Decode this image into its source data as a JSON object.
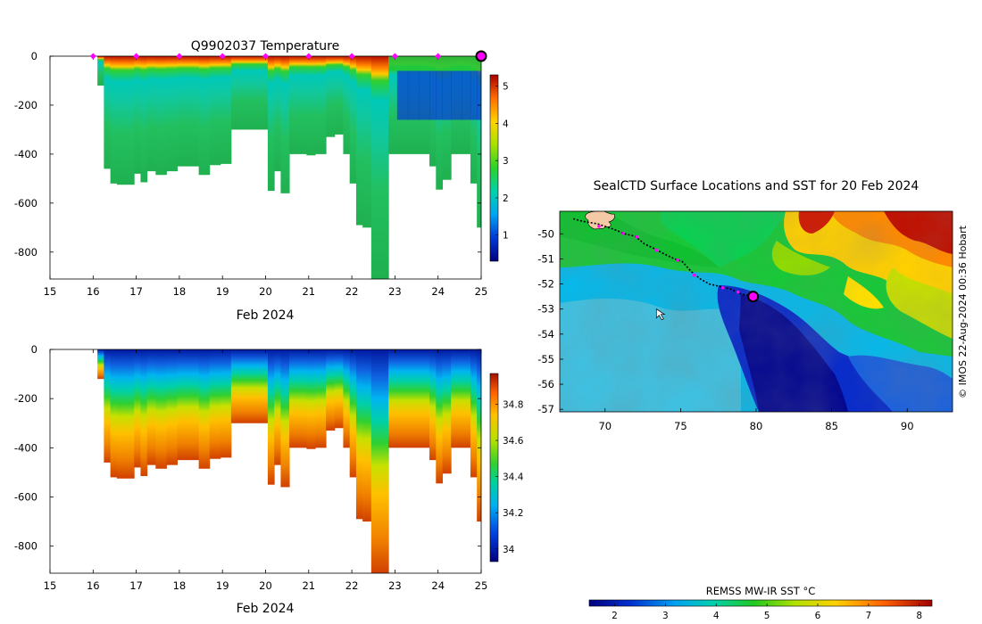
{
  "figure_title": "SealCTD Surface Locations and SST",
  "chart_data": [
    {
      "type": "heatmap",
      "title": "Q9902037  Temperature",
      "xlabel": "Feb 2024",
      "xticks": [
        "15",
        "16",
        "17",
        "18",
        "19",
        "20",
        "21",
        "22",
        "23",
        "24",
        "25"
      ],
      "xlim": [
        15,
        25
      ],
      "ylim": [
        -910,
        0
      ],
      "yticks": [
        "0",
        "-200",
        "-400",
        "-600",
        "-800"
      ],
      "ytick_values": [
        0,
        -200,
        -400,
        -600,
        -800
      ],
      "colorbar": {
        "ticks": [
          "1",
          "2",
          "3",
          "4",
          "5"
        ],
        "values": [
          1,
          2,
          3,
          4,
          5
        ],
        "range": [
          0.3,
          5.3
        ]
      },
      "surface_markers_day": [
        16,
        17,
        18,
        19,
        20,
        21,
        22,
        23,
        24
      ],
      "latest_marker_day": 25,
      "profiles": [
        {
          "day": 16.1,
          "depth": 120
        },
        {
          "day": 16.25,
          "depth": 460
        },
        {
          "day": 16.4,
          "depth": 520
        },
        {
          "day": 16.55,
          "depth": 525
        },
        {
          "day": 16.75,
          "depth": 525
        },
        {
          "day": 16.95,
          "depth": 480
        },
        {
          "day": 17.1,
          "depth": 515
        },
        {
          "day": 17.25,
          "depth": 470
        },
        {
          "day": 17.45,
          "depth": 485
        },
        {
          "day": 17.7,
          "depth": 470
        },
        {
          "day": 17.95,
          "depth": 450
        },
        {
          "day": 18.2,
          "depth": 450
        },
        {
          "day": 18.45,
          "depth": 485
        },
        {
          "day": 18.7,
          "depth": 445
        },
        {
          "day": 18.95,
          "depth": 440
        },
        {
          "day": 19.2,
          "depth": 300
        },
        {
          "day": 19.5,
          "depth": 300
        },
        {
          "day": 19.8,
          "depth": 300
        },
        {
          "day": 20.05,
          "depth": 550
        },
        {
          "day": 20.2,
          "depth": 470
        },
        {
          "day": 20.35,
          "depth": 560
        },
        {
          "day": 20.55,
          "depth": 400
        },
        {
          "day": 20.8,
          "depth": 400
        },
        {
          "day": 20.95,
          "depth": 405
        },
        {
          "day": 21.15,
          "depth": 400
        },
        {
          "day": 21.4,
          "depth": 330
        },
        {
          "day": 21.6,
          "depth": 320
        },
        {
          "day": 21.8,
          "depth": 400
        },
        {
          "day": 21.95,
          "depth": 520
        },
        {
          "day": 22.1,
          "depth": 690
        },
        {
          "day": 22.25,
          "depth": 700
        },
        {
          "day": 22.45,
          "depth": 910
        },
        {
          "day": 22.65,
          "depth": 910
        },
        {
          "day": 22.85,
          "depth": 400
        },
        {
          "day": 23.05,
          "depth": 400
        },
        {
          "day": 23.3,
          "depth": 400
        },
        {
          "day": 23.55,
          "depth": 400
        },
        {
          "day": 23.8,
          "depth": 450
        },
        {
          "day": 23.95,
          "depth": 545
        },
        {
          "day": 24.1,
          "depth": 505
        },
        {
          "day": 24.3,
          "depth": 400
        },
        {
          "day": 24.55,
          "depth": 400
        },
        {
          "day": 24.75,
          "depth": 520
        },
        {
          "day": 24.9,
          "depth": 700
        }
      ]
    },
    {
      "type": "heatmap",
      "title": "",
      "xlabel": "Feb 2024",
      "xticks": [
        "15",
        "16",
        "17",
        "18",
        "19",
        "20",
        "21",
        "22",
        "23",
        "24",
        "25"
      ],
      "xlim": [
        15,
        25
      ],
      "ylim": [
        -910,
        0
      ],
      "yticks": [
        "0",
        "-200",
        "-400",
        "-600",
        "-800"
      ],
      "ytick_values": [
        0,
        -200,
        -400,
        -600,
        -800
      ],
      "colorbar": {
        "ticks": [
          "34",
          "34.2",
          "34.4",
          "34.6",
          "34.8"
        ],
        "values": [
          34,
          34.2,
          34.4,
          34.6,
          34.8
        ],
        "range": [
          33.93,
          34.97
        ]
      }
    },
    {
      "type": "heatmap",
      "title": "SealCTD Surface Locations and SST for 20 Feb 2024",
      "xlabel": "",
      "xticks": [
        "70",
        "75",
        "80",
        "85",
        "90"
      ],
      "xtick_values": [
        70,
        75,
        80,
        85,
        90
      ],
      "xlim": [
        67,
        93
      ],
      "yticks": [
        "-50",
        "-51",
        "-52",
        "-53",
        "-54",
        "-55",
        "-56",
        "-57"
      ],
      "ytick_values": [
        -50,
        -51,
        -52,
        -53,
        -54,
        -55,
        -56,
        -57
      ],
      "ylim": [
        -57.1,
        -49.1
      ],
      "colorbar_label": "REMSS MW-IR SST °C",
      "colorbar": {
        "ticks": [
          "2",
          "3",
          "4",
          "5",
          "6",
          "7",
          "8"
        ],
        "values": [
          2,
          3,
          4,
          5,
          6,
          7,
          8
        ],
        "range": [
          1.5,
          8.25
        ]
      },
      "credit": "© IMOS 22-Aug-2024 00:36 Hobart",
      "track": [
        [
          67.9,
          -49.4
        ],
        [
          68.5,
          -49.5
        ],
        [
          69.5,
          -49.6
        ],
        [
          70.5,
          -49.8
        ],
        [
          71.3,
          -50.0
        ],
        [
          72.0,
          -50.1
        ],
        [
          72.6,
          -50.4
        ],
        [
          73.3,
          -50.6
        ],
        [
          73.9,
          -50.8
        ],
        [
          74.6,
          -51.0
        ],
        [
          75.1,
          -51.1
        ],
        [
          75.7,
          -51.5
        ],
        [
          76.3,
          -51.8
        ],
        [
          76.9,
          -52.0
        ],
        [
          77.6,
          -52.1
        ],
        [
          78.3,
          -52.2
        ],
        [
          79.0,
          -52.4
        ],
        [
          79.8,
          -52.5
        ]
      ],
      "track_surface_points": [
        [
          69.6,
          -49.7
        ],
        [
          71.2,
          -49.98
        ],
        [
          72.1,
          -50.12
        ],
        [
          73.4,
          -50.65
        ],
        [
          74.8,
          -51.05
        ],
        [
          75.9,
          -51.65
        ],
        [
          77.8,
          -52.15
        ],
        [
          78.8,
          -52.32
        ]
      ],
      "latest_position": [
        79.8,
        -52.5
      ],
      "cursor_position": [
        73.4,
        -53.0
      ]
    }
  ]
}
